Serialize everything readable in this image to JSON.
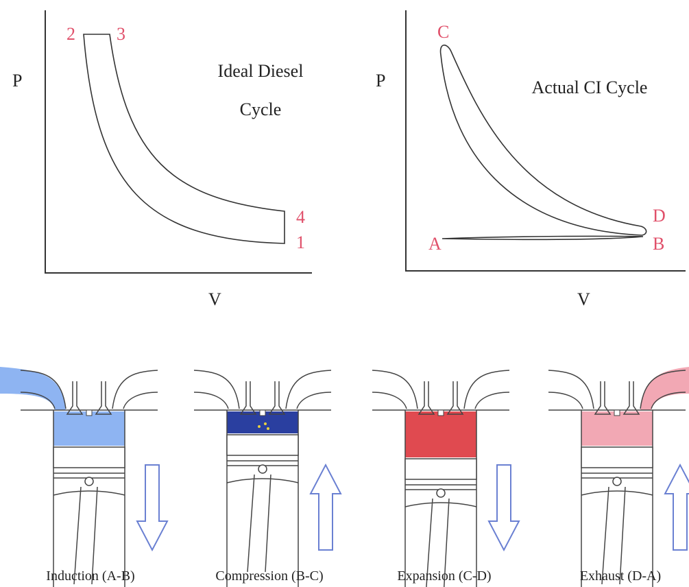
{
  "ideal_diesel": {
    "title_lines": [
      "Ideal Diesel",
      "Cycle"
    ],
    "y_axis": "P",
    "x_axis": "V",
    "points": [
      "2",
      "3",
      "4",
      "1"
    ]
  },
  "actual_ci": {
    "title": "Actual CI Cycle",
    "y_axis": "P",
    "x_axis": "V",
    "points": [
      "C",
      "D",
      "A",
      "B"
    ]
  },
  "strokes": [
    {
      "label": "Induction (A-B)"
    },
    {
      "label": "Compression (B-C)"
    },
    {
      "label": "Expansion (C-D)"
    },
    {
      "label": "Exhaust (D-A)"
    }
  ]
}
